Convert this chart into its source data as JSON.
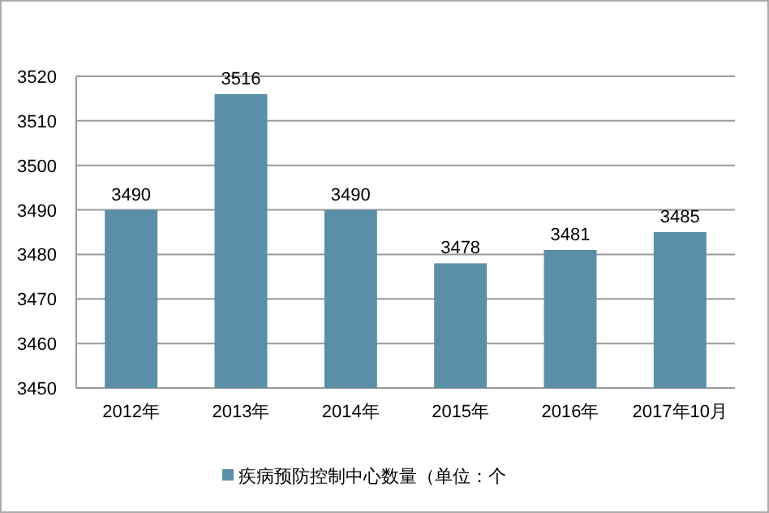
{
  "chart_data": {
    "type": "bar",
    "categories": [
      "2012年",
      "2013年",
      "2014年",
      "2015年",
      "2016年",
      "2017年10月"
    ],
    "series": [
      {
        "name": "疾病预防控制中心数量（单位：个",
        "color": "#5b8fa8",
        "values": [
          3490,
          3516,
          3490,
          3478,
          3481,
          3485
        ]
      }
    ],
    "ylim": [
      3450,
      3520
    ],
    "yticks": [
      3450,
      3460,
      3470,
      3480,
      3490,
      3500,
      3510,
      3520
    ],
    "grid": "y",
    "legend": "bottom",
    "data_labels": true
  }
}
